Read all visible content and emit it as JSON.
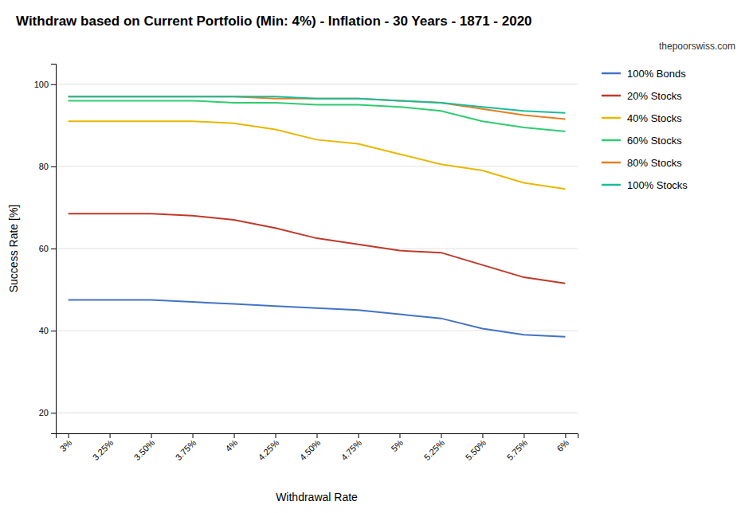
{
  "chart_data": {
    "type": "line",
    "title": "Withdraw based on Current Portfolio (Min: 4%) - Inflation - 30 Years - 1871 - 2020",
    "subtitle": "thepoorswiss.com",
    "xlabel": "Withdrawal Rate",
    "ylabel": "Success Rate [%]",
    "categories": [
      "3%",
      "3.25%",
      "3.50%",
      "3.75%",
      "4%",
      "4.25%",
      "4.50%",
      "4.75%",
      "5%",
      "5.25%",
      "5.50%",
      "5.75%",
      "6%"
    ],
    "ylim": [
      15,
      105
    ],
    "yticks": [
      20,
      40,
      60,
      80,
      100
    ],
    "grid": true,
    "legend": "right",
    "series": [
      {
        "name": "100% Bonds",
        "color": "#4472C4",
        "values": [
          47.5,
          47.5,
          47.5,
          47.0,
          46.5,
          46.0,
          45.5,
          45.0,
          44.0,
          43.0,
          40.5,
          39.0,
          38.5
        ]
      },
      {
        "name": "20% Stocks",
        "color": "#C0392B",
        "values": [
          68.5,
          68.5,
          68.5,
          68.0,
          67.0,
          65.0,
          62.5,
          61.0,
          59.5,
          59.0,
          56.0,
          53.0,
          51.5
        ]
      },
      {
        "name": "40% Stocks",
        "color": "#E8B800",
        "values": [
          91.0,
          91.0,
          91.0,
          91.0,
          90.5,
          89.0,
          86.5,
          85.5,
          83.0,
          80.5,
          79.0,
          76.0,
          74.5
        ]
      },
      {
        "name": "60% Stocks",
        "color": "#2ECC71",
        "values": [
          96.0,
          96.0,
          96.0,
          96.0,
          95.5,
          95.5,
          95.0,
          95.0,
          94.5,
          93.5,
          91.0,
          89.5,
          88.5
        ]
      },
      {
        "name": "80% Stocks",
        "color": "#E67E22",
        "values": [
          97.0,
          97.0,
          97.0,
          97.0,
          97.0,
          96.5,
          96.5,
          96.5,
          96.0,
          95.5,
          94.0,
          92.5,
          91.5
        ]
      },
      {
        "name": "100% Stocks",
        "color": "#1ABC9C",
        "values": [
          97.0,
          97.0,
          97.0,
          97.0,
          97.0,
          97.0,
          96.5,
          96.5,
          96.0,
          95.5,
          94.5,
          93.5,
          93.0
        ]
      }
    ]
  }
}
